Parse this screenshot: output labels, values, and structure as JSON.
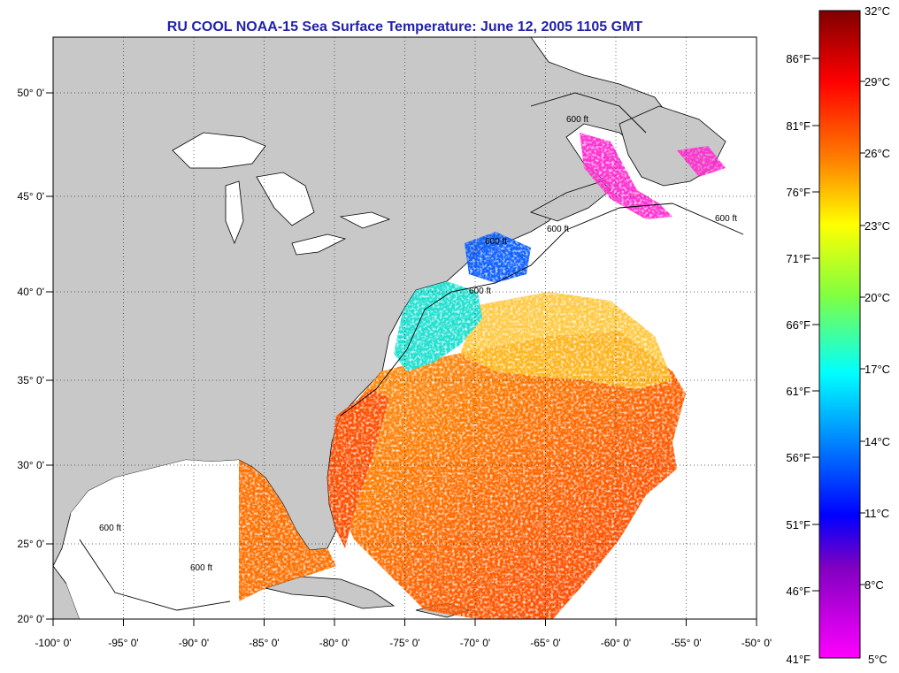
{
  "title": "RU COOL  NOAA-15  Sea Surface Temperature:  June 12, 2005 1105 GMT",
  "map": {
    "lon_range": [
      -100,
      -50
    ],
    "lat_range": [
      20,
      52
    ],
    "lon_ticks": [
      "-100° 0'",
      "-95° 0'",
      "-90° 0'",
      "-85° 0'",
      "-80° 0'",
      "-75° 0'",
      "-70° 0'",
      "-65° 0'",
      "-60° 0'",
      "-55° 0'",
      "-50° 0'"
    ],
    "lat_ticks": [
      "20° 0'",
      "25° 0'",
      "30° 0'",
      "35° 0'",
      "40° 0'",
      "45° 0'",
      "50° 0'"
    ],
    "isobath_label": "600 ft",
    "grid": "dotted",
    "land_color": "#c8c8c8",
    "ocean_nodata_color": "#ffffff"
  },
  "colorbar": {
    "celsius_labels": [
      "32°C",
      "29°C",
      "26°C",
      "23°C",
      "20°C",
      "17°C",
      "14°C",
      "11°C",
      "8°C",
      "5°C"
    ],
    "fahrenheit_labels": [
      "86°F",
      "81°F",
      "76°F",
      "71°F",
      "66°F",
      "61°F",
      "56°F",
      "51°F",
      "46°F",
      "41°F"
    ],
    "celsius_range": [
      5,
      32
    ],
    "colors_top_to_bottom": [
      "#800000",
      "#ff0000",
      "#ff8000",
      "#ffff00",
      "#80ff40",
      "#00ffff",
      "#0080ff",
      "#0000ff",
      "#8000c0",
      "#ff00ff"
    ]
  }
}
